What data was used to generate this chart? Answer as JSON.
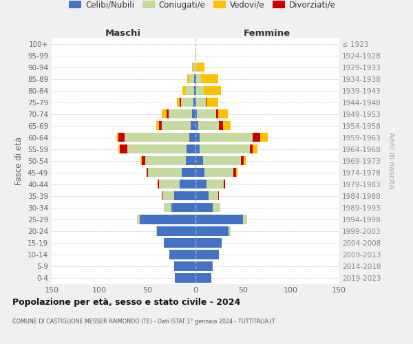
{
  "age_groups": [
    "100+",
    "95-99",
    "90-94",
    "85-89",
    "80-84",
    "75-79",
    "70-74",
    "65-69",
    "60-64",
    "55-59",
    "50-54",
    "45-49",
    "40-44",
    "35-39",
    "30-34",
    "25-29",
    "20-24",
    "15-19",
    "10-14",
    "5-9",
    "0-4"
  ],
  "birth_years": [
    "≤ 1923",
    "1924-1928",
    "1929-1933",
    "1934-1938",
    "1939-1943",
    "1944-1948",
    "1949-1953",
    "1954-1958",
    "1959-1963",
    "1964-1968",
    "1969-1973",
    "1974-1978",
    "1979-1983",
    "1984-1988",
    "1989-1993",
    "1994-1998",
    "1999-2003",
    "2004-2008",
    "2009-2013",
    "2014-2018",
    "2019-2023"
  ],
  "male_celibi": [
    0,
    0,
    0,
    1,
    1,
    2,
    3,
    5,
    6,
    9,
    10,
    14,
    16,
    22,
    25,
    58,
    40,
    33,
    27,
    22,
    21
  ],
  "male_coniugati": [
    0,
    0,
    2,
    5,
    9,
    13,
    25,
    30,
    68,
    62,
    42,
    35,
    22,
    12,
    8,
    3,
    1,
    0,
    0,
    0,
    0
  ],
  "male_vedovi": [
    0,
    0,
    1,
    2,
    3,
    3,
    5,
    3,
    2,
    1,
    1,
    0,
    0,
    0,
    0,
    0,
    0,
    0,
    0,
    0,
    0
  ],
  "male_divorziati": [
    0,
    0,
    0,
    0,
    0,
    1,
    2,
    3,
    6,
    8,
    4,
    2,
    1,
    1,
    0,
    0,
    0,
    0,
    0,
    0,
    0
  ],
  "female_nubili": [
    0,
    0,
    0,
    1,
    1,
    1,
    2,
    3,
    5,
    5,
    8,
    10,
    12,
    14,
    18,
    50,
    35,
    28,
    25,
    18,
    17
  ],
  "female_coniugate": [
    0,
    0,
    2,
    5,
    8,
    10,
    20,
    22,
    55,
    52,
    40,
    30,
    18,
    10,
    8,
    4,
    2,
    0,
    0,
    0,
    0
  ],
  "female_vedove": [
    0,
    1,
    8,
    18,
    18,
    12,
    10,
    8,
    8,
    5,
    2,
    1,
    0,
    0,
    0,
    0,
    0,
    0,
    0,
    0,
    0
  ],
  "female_divorziate": [
    0,
    0,
    0,
    0,
    0,
    1,
    2,
    4,
    8,
    3,
    3,
    3,
    1,
    1,
    0,
    0,
    0,
    0,
    0,
    0,
    0
  ],
  "color_celibi": "#4472c4",
  "color_coniugati": "#c5d9a0",
  "color_vedovi": "#ffc000",
  "color_divorziati": "#cc0000",
  "xlim": 150,
  "title": "Popolazione per età, sesso e stato civile - 2024",
  "subtitle": "COMUNE DI CASTIGLIONE MESSER RAIMONDO (TE) - Dati ISTAT 1° gennaio 2024 - TUTTITALIA.IT",
  "ylabel_left": "Fasce di età",
  "ylabel_right": "Anni di nascita",
  "label_male": "Maschi",
  "label_female": "Femmine",
  "bg_color": "#f0f0f0",
  "plot_bg": "#ffffff",
  "legend_labels": [
    "Celibi/Nubili",
    "Coniugati/e",
    "Vedovi/e",
    "Divorziati/e"
  ]
}
